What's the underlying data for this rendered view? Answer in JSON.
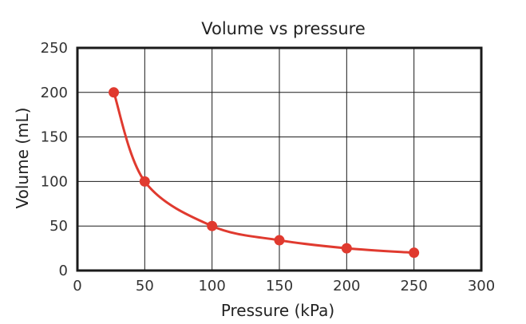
{
  "chart_data": {
    "type": "line",
    "title": "Volume vs pressure",
    "xlabel": "Pressure (kPa)",
    "ylabel": "Volume (mL)",
    "xlim": [
      0,
      300
    ],
    "ylim": [
      0,
      250
    ],
    "x_ticks": [
      0,
      50,
      100,
      150,
      200,
      250,
      300
    ],
    "y_ticks": [
      0,
      50,
      100,
      150,
      200,
      250
    ],
    "x_tick_labels": [
      "0",
      "50",
      "100",
      "150",
      "200",
      "250",
      "300"
    ],
    "y_tick_labels": [
      "0",
      "50",
      "100",
      "150",
      "200",
      "250"
    ],
    "grid": true,
    "series": [
      {
        "x": [
          27,
          50,
          100,
          150,
          200,
          250
        ],
        "y": [
          200,
          100,
          50,
          34,
          25,
          20
        ],
        "color": "#e03a2f"
      }
    ]
  }
}
